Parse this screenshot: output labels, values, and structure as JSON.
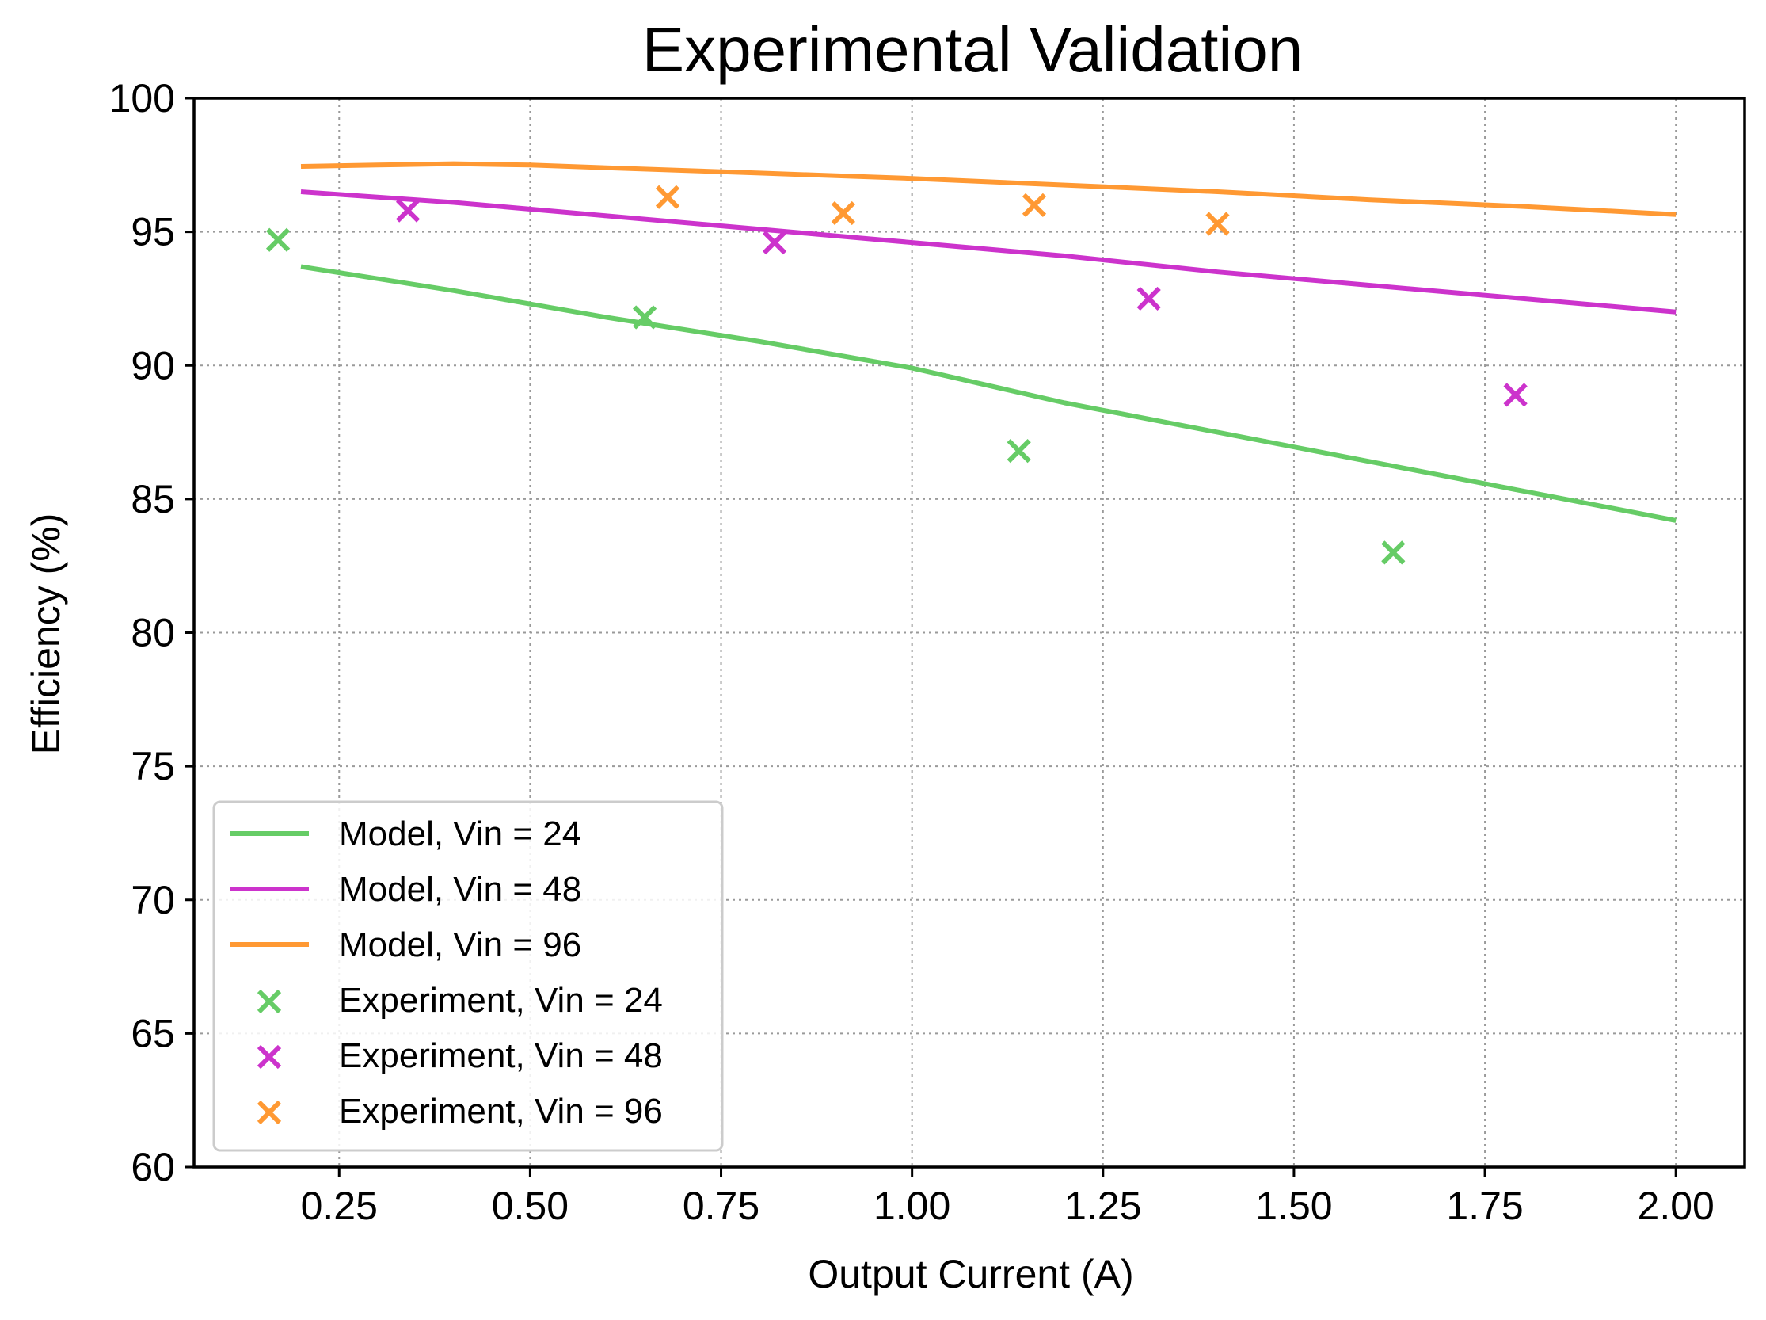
{
  "chart_data": {
    "type": "line",
    "title": "Experimental Validation",
    "xlabel": "Output Current (A)",
    "ylabel": "Efficiency (%)",
    "xlim": [
      0.06,
      2.09
    ],
    "ylim": [
      60,
      100
    ],
    "xticks": [
      0.25,
      0.5,
      0.75,
      1.0,
      1.25,
      1.5,
      1.75,
      2.0
    ],
    "xtick_labels": [
      "0.25",
      "0.50",
      "0.75",
      "1.00",
      "1.25",
      "1.50",
      "1.75",
      "2.00"
    ],
    "yticks": [
      60,
      65,
      70,
      75,
      80,
      85,
      90,
      95,
      100
    ],
    "ytick_labels": [
      "60",
      "65",
      "70",
      "75",
      "80",
      "85",
      "90",
      "95",
      "100"
    ],
    "grid": true,
    "legend_position": "lower-left",
    "series": [
      {
        "name": "Model, Vin = 24",
        "kind": "line",
        "color": "#66cc66",
        "x": [
          0.2,
          0.4,
          0.6,
          0.8,
          1.0,
          1.2,
          1.4,
          1.6,
          1.8,
          2.0
        ],
        "y": [
          93.7,
          92.8,
          91.8,
          90.9,
          89.9,
          88.6,
          87.5,
          86.4,
          85.3,
          84.2
        ]
      },
      {
        "name": "Model, Vin = 48",
        "kind": "line",
        "color": "#cc33cc",
        "x": [
          0.2,
          0.4,
          0.6,
          0.8,
          1.0,
          1.2,
          1.4,
          1.6,
          1.8,
          2.0
        ],
        "y": [
          96.5,
          96.1,
          95.6,
          95.1,
          94.6,
          94.1,
          93.5,
          93.0,
          92.5,
          92.0
        ]
      },
      {
        "name": "Model, Vin = 96",
        "kind": "line",
        "color": "#ff9933",
        "x": [
          0.2,
          0.3,
          0.4,
          0.5,
          0.6,
          0.8,
          1.0,
          1.2,
          1.4,
          1.6,
          1.8,
          2.0
        ],
        "y": [
          97.45,
          97.5,
          97.55,
          97.5,
          97.4,
          97.2,
          97.0,
          96.75,
          96.5,
          96.2,
          95.95,
          95.65
        ]
      },
      {
        "name": "Experiment, Vin = 24",
        "kind": "scatter",
        "color": "#66cc66",
        "x": [
          0.17,
          0.65,
          1.14,
          1.63
        ],
        "y": [
          94.7,
          91.8,
          86.8,
          83.0
        ]
      },
      {
        "name": "Experiment, Vin = 48",
        "kind": "scatter",
        "color": "#cc33cc",
        "x": [
          0.34,
          0.82,
          1.31,
          1.79
        ],
        "y": [
          95.8,
          94.6,
          92.5,
          88.9
        ]
      },
      {
        "name": "Experiment, Vin = 96",
        "kind": "scatter",
        "color": "#ff9933",
        "x": [
          0.68,
          0.91,
          1.16,
          1.4
        ],
        "y": [
          96.3,
          95.7,
          96.0,
          95.3
        ]
      }
    ]
  }
}
